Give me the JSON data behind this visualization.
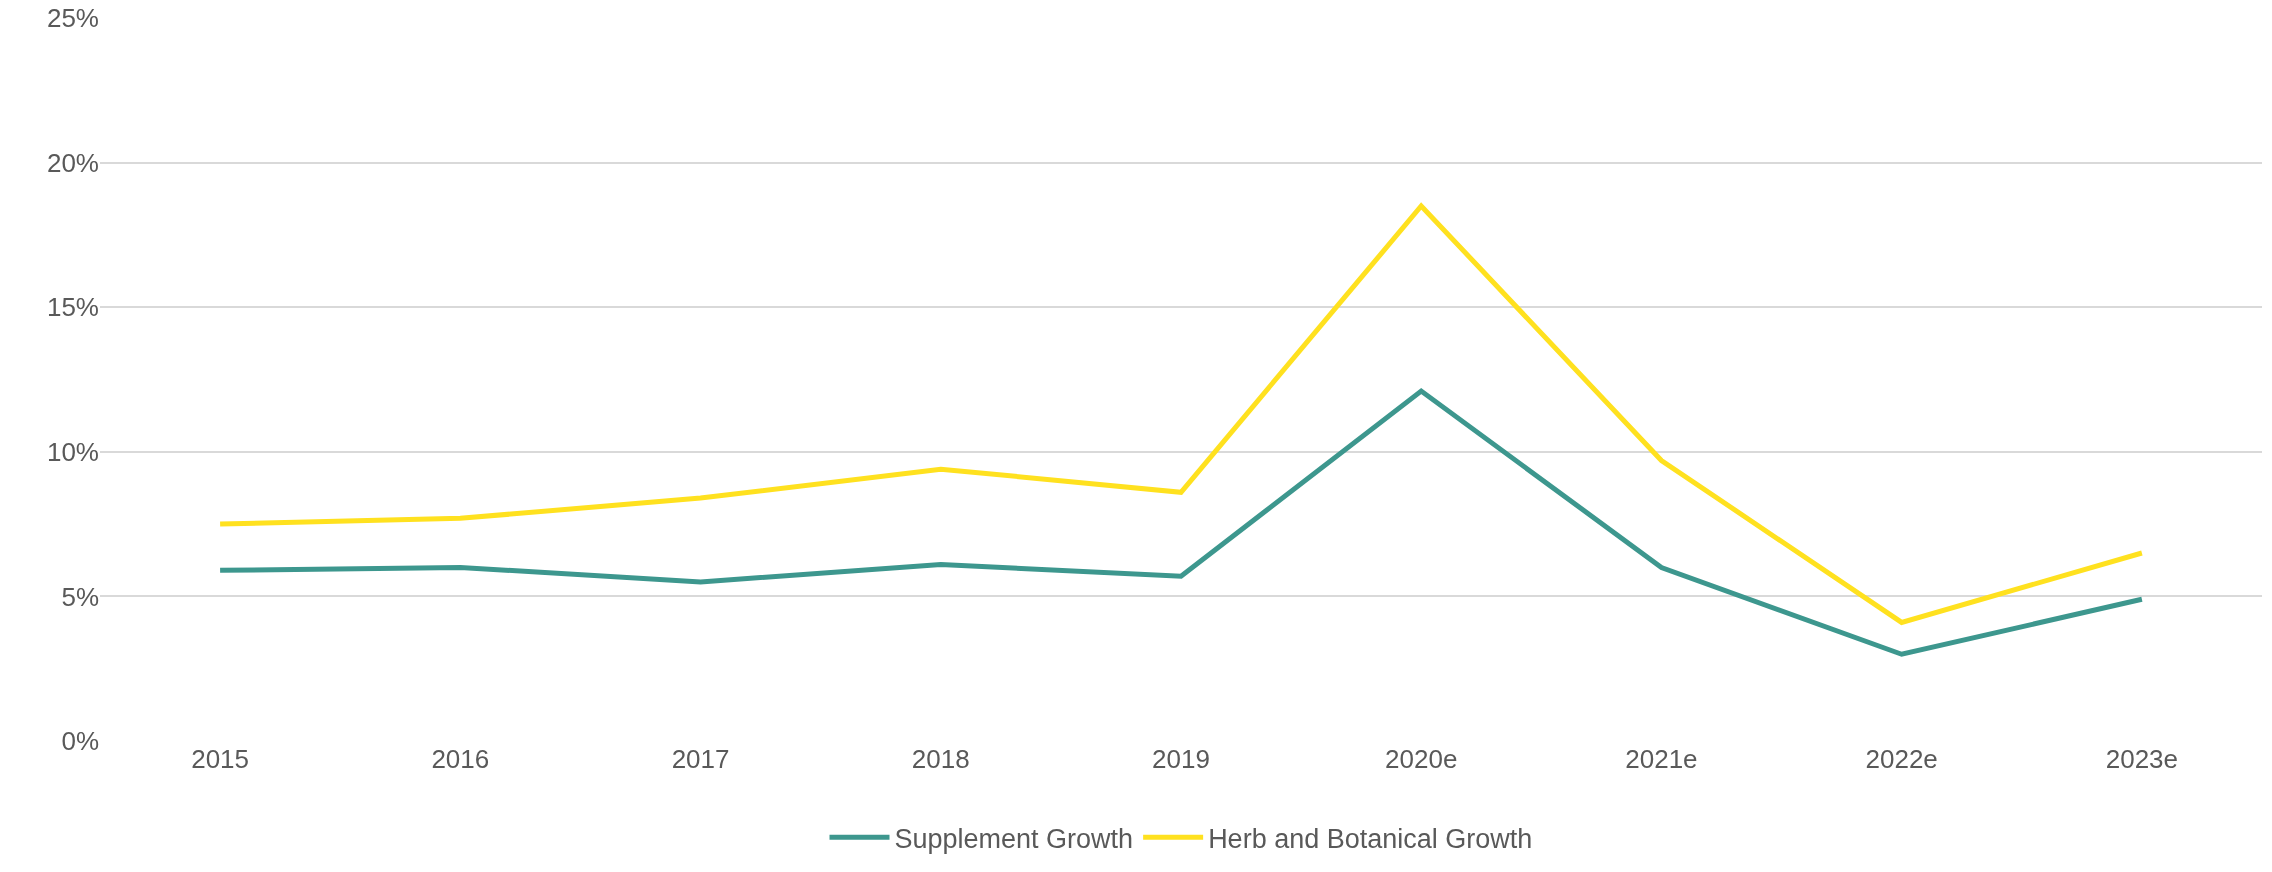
{
  "chart_data": {
    "type": "line",
    "categories": [
      "2015",
      "2016",
      "2017",
      "2018",
      "2019",
      "2020e",
      "2021e",
      "2022e",
      "2023e"
    ],
    "series": [
      {
        "name": "Supplement Growth",
        "color": "#3d978e",
        "values": [
          5.9,
          6.0,
          5.5,
          6.1,
          5.7,
          12.1,
          6.0,
          3.0,
          4.9
        ]
      },
      {
        "name": "Herb and Botanical Growth",
        "color": "#ffe11f",
        "values": [
          7.5,
          7.7,
          8.4,
          9.4,
          8.6,
          18.5,
          9.7,
          4.1,
          6.5
        ]
      }
    ],
    "ylim": [
      0,
      25
    ],
    "yticks": [
      {
        "value": 0,
        "label": "0%"
      },
      {
        "value": 5,
        "label": "5%"
      },
      {
        "value": 10,
        "label": "10%"
      },
      {
        "value": 15,
        "label": "15%"
      },
      {
        "value": 20,
        "label": "20%"
      },
      {
        "value": 25,
        "label": "25%"
      }
    ],
    "grid": "y",
    "legend": "bottom",
    "marker": "none",
    "line_style": "solid"
  }
}
